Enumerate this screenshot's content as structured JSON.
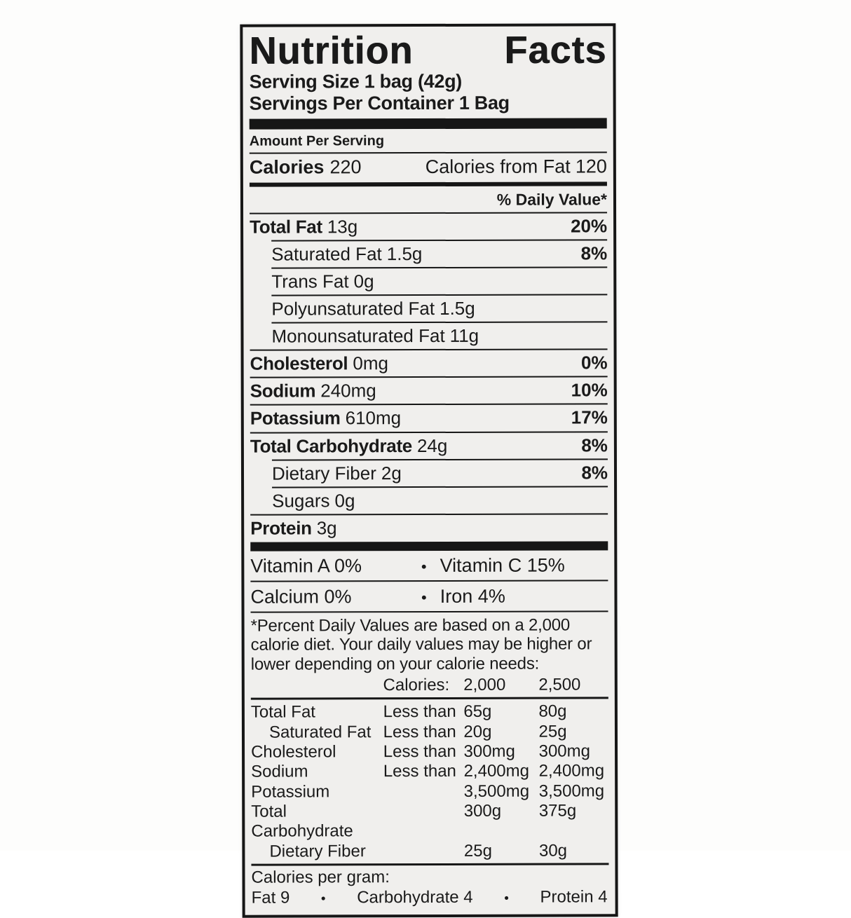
{
  "colors": {
    "ink": "#1a1a1a",
    "paper": "#f0efed",
    "page_background": "#ffffff"
  },
  "label": {
    "title": "Nutrition Facts",
    "serving_size": "Serving Size 1 bag (42g)",
    "servings_per_container": "Servings Per Container 1 Bag",
    "amount_per_serving": "Amount Per Serving",
    "calories": {
      "label": "Calories",
      "value": "220",
      "from_fat_label": "Calories from Fat",
      "from_fat_value": "120"
    },
    "daily_value_header": "% Daily Value*",
    "bullet": "•",
    "nutrients": [
      {
        "name": "Total Fat",
        "amount": "13g",
        "dv": "20%"
      },
      {
        "name": "Saturated Fat",
        "amount": "1.5g",
        "dv": "8%"
      },
      {
        "name": "Trans Fat",
        "amount": "0g",
        "dv": ""
      },
      {
        "name": "Polyunsaturated Fat",
        "amount": "1.5g",
        "dv": ""
      },
      {
        "name": "Monounsaturated Fat",
        "amount": "11g",
        "dv": ""
      },
      {
        "name": "Cholesterol",
        "amount": "0mg",
        "dv": "0%"
      },
      {
        "name": "Sodium",
        "amount": "240mg",
        "dv": "10%"
      },
      {
        "name": "Potassium",
        "amount": "610mg",
        "dv": "17%"
      },
      {
        "name": "Total Carbohydrate",
        "amount": "24g",
        "dv": "8%"
      },
      {
        "name": "Dietary Fiber",
        "amount": "2g",
        "dv": "8%"
      },
      {
        "name": "Sugars",
        "amount": "0g",
        "dv": ""
      },
      {
        "name": "Protein",
        "amount": "3g",
        "dv": ""
      }
    ],
    "vitamins": {
      "row1_left": "Vitamin A 0%",
      "row1_right": "Vitamin C 15%",
      "row2_left": "Calcium 0%",
      "row2_right": "Iron 4%"
    },
    "footnote": "*Percent Daily Values are based on a 2,000 calorie diet. Your daily values may be higher or lower depending on your calorie needs:",
    "footnote_table": {
      "header": {
        "label": "Calories:",
        "col_2000": "2,000",
        "col_2500": "2,500"
      },
      "rows": [
        {
          "name": "Total Fat",
          "qualifier": "Less than",
          "col_2000": "65g",
          "col_2500": "80g"
        },
        {
          "name": "Saturated Fat",
          "qualifier": "Less than",
          "col_2000": "20g",
          "col_2500": "25g"
        },
        {
          "name": "Cholesterol",
          "qualifier": "Less than",
          "col_2000": "300mg",
          "col_2500": "300mg"
        },
        {
          "name": "Sodium",
          "qualifier": "Less than",
          "col_2000": "2,400mg",
          "col_2500": "2,400mg"
        },
        {
          "name": "Potassium",
          "qualifier": "",
          "col_2000": "3,500mg",
          "col_2500": "3,500mg"
        },
        {
          "name": "Total Carbohydrate",
          "qualifier": "",
          "col_2000": "300g",
          "col_2500": "375g"
        },
        {
          "name": "Dietary Fiber",
          "qualifier": "",
          "col_2000": "25g",
          "col_2500": "30g"
        }
      ]
    },
    "calories_per_gram": {
      "title": "Calories per gram:",
      "fat": "Fat 9",
      "carbohydrate": "Carbohydrate 4",
      "protein": "Protein 4"
    }
  }
}
